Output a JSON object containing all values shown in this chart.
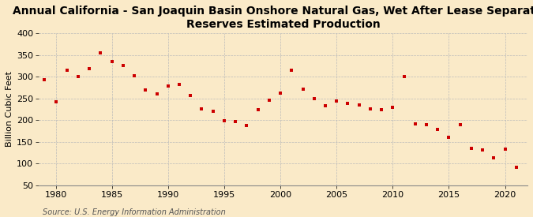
{
  "title": "Annual California - San Joaquin Basin Onshore Natural Gas, Wet After Lease Separation\nReserves Estimated Production",
  "ylabel": "Billion Cubic Feet",
  "source": "Source: U.S. Energy Information Administration",
  "background_color": "#faeac8",
  "marker_color": "#cc0000",
  "years": [
    1979,
    1980,
    1981,
    1982,
    1983,
    1984,
    1985,
    1986,
    1987,
    1988,
    1989,
    1990,
    1991,
    1992,
    1993,
    1994,
    1995,
    1996,
    1997,
    1998,
    1999,
    2000,
    2001,
    2002,
    2003,
    2004,
    2005,
    2006,
    2007,
    2008,
    2009,
    2010,
    2011,
    2012,
    2013,
    2014,
    2015,
    2016,
    2017,
    2018,
    2019,
    2020,
    2021
  ],
  "values": [
    293,
    242,
    315,
    300,
    318,
    355,
    335,
    325,
    302,
    270,
    260,
    278,
    283,
    257,
    225,
    220,
    198,
    197,
    187,
    224,
    246,
    263,
    315,
    272,
    249,
    233,
    244,
    238,
    235,
    225,
    223,
    230,
    300,
    192,
    190,
    178,
    160,
    190,
    135,
    132,
    113,
    133,
    92
  ],
  "xlim": [
    1978.5,
    2022
  ],
  "ylim": [
    50,
    400
  ],
  "yticks": [
    50,
    100,
    150,
    200,
    250,
    300,
    350,
    400
  ],
  "xticks": [
    1980,
    1985,
    1990,
    1995,
    2000,
    2005,
    2010,
    2015,
    2020
  ],
  "grid_color": "#bbbbbb",
  "title_fontsize": 10,
  "tick_fontsize": 8,
  "ylabel_fontsize": 8,
  "source_fontsize": 7
}
